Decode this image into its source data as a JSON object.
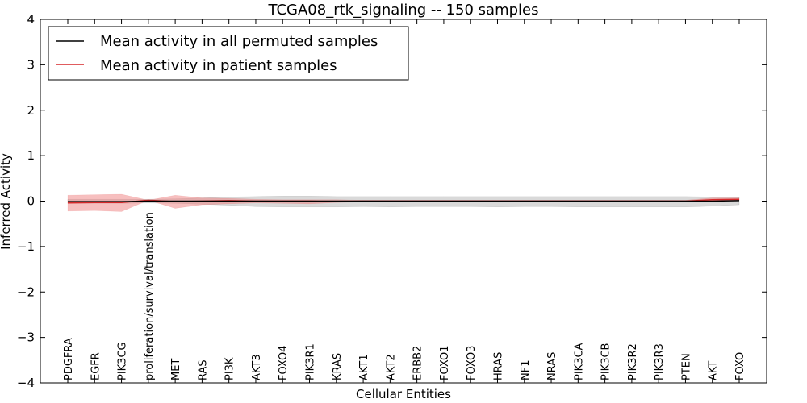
{
  "chart_data": {
    "type": "line",
    "title": "TCGA08_rtk_signaling -- 150 samples",
    "xlabel": "Cellular Entities",
    "ylabel": "Inferred Activity",
    "ylim": [
      -4,
      4
    ],
    "yticks": [
      -4,
      -3,
      -2,
      -1,
      0,
      1,
      2,
      3,
      4
    ],
    "ytick_labels": [
      "−4",
      "−3",
      "−2",
      "−1",
      "0",
      "1",
      "2",
      "3",
      "4"
    ],
    "grid": false,
    "legend_position": "top-left",
    "categories": [
      "PDGFRA",
      "EGFR",
      "PIK3CG",
      "proliferation/survival/translation",
      "MET",
      "RAS",
      "PI3K",
      "AKT3",
      "FOXO4",
      "PIK3R1",
      "KRAS",
      "AKT1",
      "AKT2",
      "ERBB2",
      "FOXO1",
      "FOXO3",
      "HRAS",
      "NF1",
      "NRAS",
      "PIK3CA",
      "PIK3CB",
      "PIK3R2",
      "PIK3R3",
      "PTEN",
      "AKT",
      "FOXO"
    ],
    "series": [
      {
        "name": "Mean activity in all permuted samples",
        "color": "#000000",
        "band_color": "#b3b3b3",
        "values": [
          -0.01,
          -0.01,
          -0.01,
          0.0,
          0.0,
          0.0,
          0.0,
          0.0,
          0.0,
          0.0,
          0.0,
          0.0,
          0.0,
          0.0,
          0.0,
          0.0,
          0.0,
          0.0,
          0.0,
          0.0,
          0.0,
          0.0,
          0.0,
          0.0,
          0.0,
          0.01
        ],
        "upper": [
          0.04,
          0.04,
          0.04,
          0.04,
          0.05,
          0.07,
          0.09,
          0.1,
          0.11,
          0.11,
          0.1,
          0.1,
          0.1,
          0.1,
          0.1,
          0.1,
          0.1,
          0.1,
          0.1,
          0.1,
          0.1,
          0.1,
          0.1,
          0.1,
          0.09,
          0.08
        ],
        "lower": [
          -0.05,
          -0.05,
          -0.05,
          -0.04,
          -0.05,
          -0.07,
          -0.09,
          -0.12,
          -0.13,
          -0.13,
          -0.13,
          -0.12,
          -0.13,
          -0.12,
          -0.12,
          -0.12,
          -0.13,
          -0.12,
          -0.12,
          -0.13,
          -0.13,
          -0.13,
          -0.13,
          -0.13,
          -0.11,
          -0.08
        ]
      },
      {
        "name": "Mean activity in patient samples",
        "color": "#d62728",
        "band_color": "#f08080",
        "values": [
          -0.04,
          -0.03,
          -0.03,
          0.02,
          -0.01,
          0.0,
          0.01,
          0.0,
          0.0,
          0.0,
          -0.01,
          0.0,
          0.0,
          0.0,
          0.0,
          0.0,
          0.0,
          0.0,
          0.0,
          0.0,
          0.0,
          0.0,
          0.0,
          0.0,
          0.03,
          0.04
        ],
        "upper": [
          0.13,
          0.14,
          0.15,
          0.02,
          0.13,
          0.07,
          0.06,
          0.04,
          0.03,
          0.03,
          0.03,
          0.02,
          0.02,
          0.02,
          0.02,
          0.02,
          0.02,
          0.02,
          0.02,
          0.02,
          0.02,
          0.02,
          0.02,
          0.02,
          0.07,
          0.07
        ],
        "lower": [
          -0.22,
          -0.21,
          -0.23,
          0.02,
          -0.16,
          -0.08,
          -0.06,
          -0.04,
          -0.05,
          -0.06,
          -0.03,
          -0.02,
          -0.02,
          -0.02,
          -0.02,
          -0.02,
          -0.02,
          -0.02,
          -0.02,
          -0.02,
          -0.02,
          -0.02,
          -0.02,
          -0.02,
          -0.01,
          0.02
        ]
      }
    ]
  }
}
